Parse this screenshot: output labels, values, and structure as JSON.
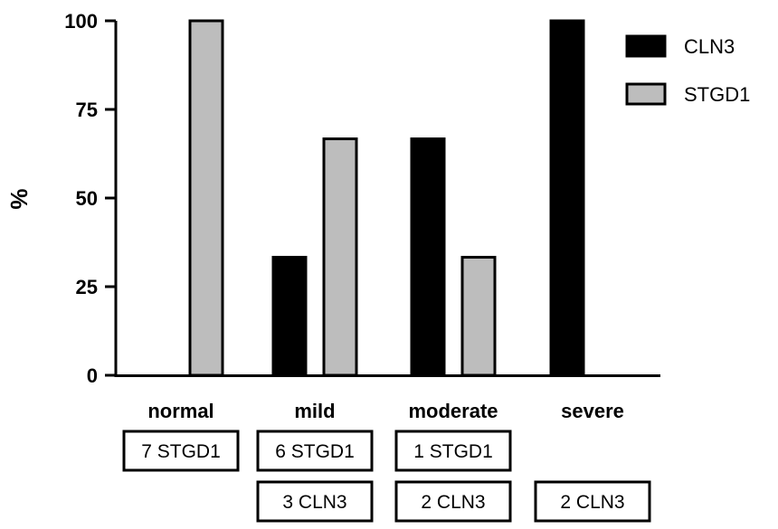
{
  "chart_data": {
    "type": "bar",
    "title": "",
    "xlabel": "",
    "ylabel": "%",
    "ylim": [
      0,
      100
    ],
    "yticks": [
      0,
      25,
      50,
      75,
      100
    ],
    "categories": [
      "normal",
      "mild",
      "moderate",
      "severe"
    ],
    "series": [
      {
        "name": "CLN3",
        "values": [
          0,
          33.3,
          66.7,
          100
        ],
        "color": "#000000"
      },
      {
        "name": "STGD1",
        "values": [
          100,
          66.7,
          33.3,
          0
        ],
        "color": "#bdbdbd"
      }
    ],
    "legend": "top-right",
    "grid": false,
    "count_boxes": [
      [
        "7 STGD1",
        null
      ],
      [
        "6 STGD1",
        "3 CLN3"
      ],
      [
        "1 STGD1",
        "2 CLN3"
      ],
      [
        null,
        "2 CLN3"
      ]
    ]
  }
}
